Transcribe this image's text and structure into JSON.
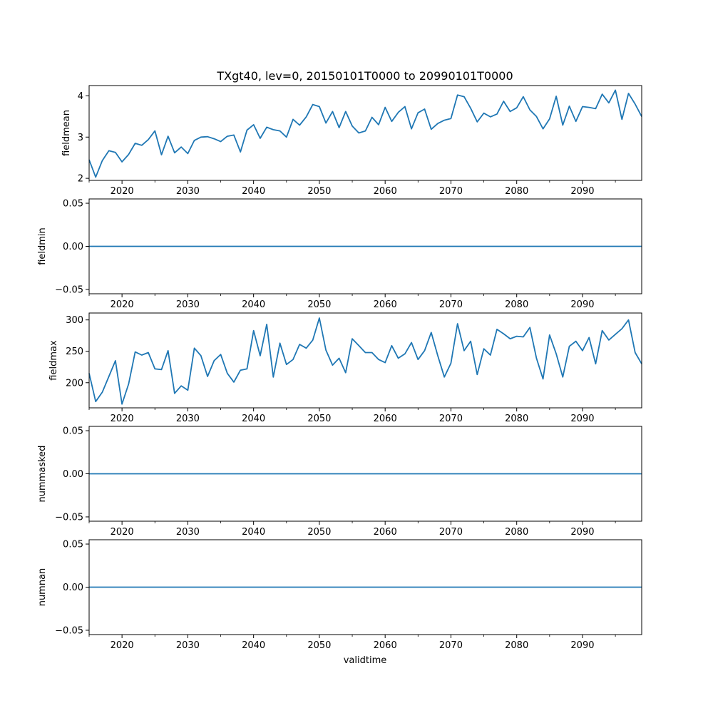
{
  "figure": {
    "title": "TXgt40, lev=0, 20150101T0000 to 20990101T0000",
    "xlabel": "validtime"
  },
  "chart_data": [
    {
      "type": "line",
      "name": "fieldmean",
      "ylabel": "fieldmean",
      "xlim": [
        2015,
        2099
      ],
      "ylim": [
        1.95,
        4.25
      ],
      "x_ticks": [
        2020,
        2030,
        2040,
        2050,
        2060,
        2070,
        2080,
        2090
      ],
      "x_tick_labels": [
        "2020",
        "2030",
        "2040",
        "2050",
        "2060",
        "2070",
        "2080",
        "2090"
      ],
      "y_ticks": [
        2,
        3,
        4
      ],
      "y_tick_labels": [
        "2",
        "3",
        "4"
      ],
      "x_start": 2015,
      "values": [
        2.45,
        2.03,
        2.43,
        2.67,
        2.63,
        2.4,
        2.58,
        2.85,
        2.8,
        2.94,
        3.15,
        2.57,
        3.02,
        2.62,
        2.76,
        2.6,
        2.92,
        3.0,
        3.01,
        2.96,
        2.89,
        3.02,
        3.05,
        2.64,
        3.17,
        3.3,
        2.97,
        3.24,
        3.18,
        3.15,
        3.0,
        3.43,
        3.29,
        3.49,
        3.79,
        3.74,
        3.34,
        3.62,
        3.23,
        3.62,
        3.27,
        3.1,
        3.15,
        3.48,
        3.3,
        3.72,
        3.38,
        3.6,
        3.74,
        3.2,
        3.59,
        3.68,
        3.19,
        3.33,
        3.41,
        3.45,
        4.02,
        3.98,
        3.7,
        3.37,
        3.58,
        3.49,
        3.56,
        3.87,
        3.62,
        3.71,
        3.98,
        3.66,
        3.5,
        3.2,
        3.44,
        3.99,
        3.29,
        3.75,
        3.38,
        3.74,
        3.72,
        3.69,
        4.04,
        3.83,
        4.14,
        3.43,
        4.06,
        3.8,
        3.5
      ]
    },
    {
      "type": "line",
      "name": "fieldmin",
      "ylabel": "fieldmin",
      "xlim": [
        2015,
        2099
      ],
      "ylim": [
        -0.055,
        0.055
      ],
      "x_ticks": [
        2020,
        2030,
        2040,
        2050,
        2060,
        2070,
        2080,
        2090
      ],
      "x_tick_labels": [
        "2020",
        "2030",
        "2040",
        "2050",
        "2060",
        "2070",
        "2080",
        "2090"
      ],
      "y_ticks": [
        -0.05,
        0.0,
        0.05
      ],
      "y_tick_labels": [
        "−0.05",
        "0.00",
        "0.05"
      ],
      "x_start": 2015,
      "constant": 0
    },
    {
      "type": "line",
      "name": "fieldmax",
      "ylabel": "fieldmax",
      "xlim": [
        2015,
        2099
      ],
      "ylim": [
        160,
        311
      ],
      "x_ticks": [
        2020,
        2030,
        2040,
        2050,
        2060,
        2070,
        2080,
        2090
      ],
      "x_tick_labels": [
        "2020",
        "2030",
        "2040",
        "2050",
        "2060",
        "2070",
        "2080",
        "2090"
      ],
      "y_ticks": [
        200,
        250,
        300
      ],
      "y_tick_labels": [
        "200",
        "250",
        "300"
      ],
      "x_start": 2015,
      "values": [
        215,
        170,
        185,
        210,
        235,
        166,
        198,
        249,
        244,
        248,
        222,
        221,
        251,
        183,
        195,
        188,
        255,
        243,
        210,
        235,
        245,
        215,
        201,
        220,
        222,
        283,
        243,
        293,
        209,
        263,
        229,
        237,
        261,
        255,
        268,
        303,
        252,
        228,
        239,
        216,
        270,
        259,
        248,
        248,
        237,
        232,
        259,
        239,
        246,
        264,
        237,
        251,
        280,
        243,
        209,
        231,
        294,
        251,
        266,
        213,
        254,
        244,
        285,
        278,
        270,
        274,
        273,
        288,
        239,
        206,
        276,
        246,
        209,
        258,
        266,
        251,
        272,
        230,
        283,
        268,
        277,
        286,
        300,
        248,
        230
      ]
    },
    {
      "type": "line",
      "name": "nummasked",
      "ylabel": "nummasked",
      "xlim": [
        2015,
        2099
      ],
      "ylim": [
        -0.055,
        0.055
      ],
      "x_ticks": [
        2020,
        2030,
        2040,
        2050,
        2060,
        2070,
        2080,
        2090
      ],
      "x_tick_labels": [
        "2020",
        "2030",
        "2040",
        "2050",
        "2060",
        "2070",
        "2080",
        "2090"
      ],
      "y_ticks": [
        -0.05,
        0.0,
        0.05
      ],
      "y_tick_labels": [
        "−0.05",
        "0.00",
        "0.05"
      ],
      "x_start": 2015,
      "constant": 0
    },
    {
      "type": "line",
      "name": "numnan",
      "ylabel": "numnan",
      "xlim": [
        2015,
        2099
      ],
      "ylim": [
        -0.055,
        0.055
      ],
      "x_ticks": [
        2020,
        2030,
        2040,
        2050,
        2060,
        2070,
        2080,
        2090
      ],
      "x_tick_labels": [
        "2020",
        "2030",
        "2040",
        "2050",
        "2060",
        "2070",
        "2080",
        "2090"
      ],
      "y_ticks": [
        -0.05,
        0.0,
        0.05
      ],
      "y_tick_labels": [
        "−0.05",
        "0.00",
        "0.05"
      ],
      "x_start": 2015,
      "constant": 0
    }
  ],
  "colors": {
    "line": "#1f77b4",
    "axes": "#000000"
  }
}
